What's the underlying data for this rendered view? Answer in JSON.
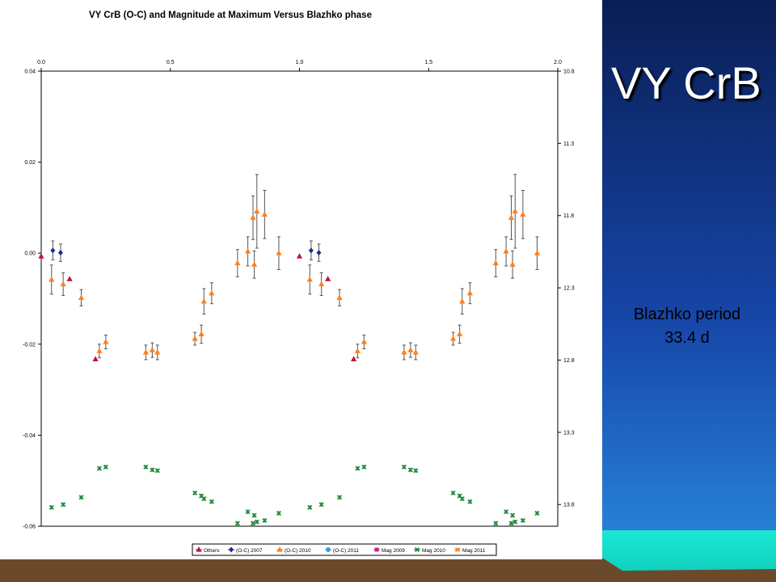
{
  "slide": {
    "title": "VY CrB",
    "caption_line1": "Blazhko period",
    "caption_line2": "33.4 d",
    "colors": {
      "blue_top": "#0a1e55",
      "blue_mid": "#1646a8",
      "blue_bottom": "#2b8ee0",
      "cyan_band": "#19e8d4",
      "brown_band": "#6b4a2c"
    }
  },
  "chart_data": {
    "type": "scatter",
    "title": "VY CrB (O-C) and Magnitude at Maximum Versus Blazhko phase",
    "x_ticks": [
      "0.0",
      "0.5",
      "1.0",
      "1.5",
      "2.0"
    ],
    "x_tick_values": [
      0,
      0.5,
      1.0,
      1.5,
      2.0
    ],
    "xlim": [
      0,
      2.0
    ],
    "y_left_ticks": [
      "0.04",
      "0.02",
      "0.00",
      "-0.02",
      "-0.04",
      "-0.06"
    ],
    "y_left_tick_values": [
      0.04,
      0.02,
      0.0,
      -0.02,
      -0.04,
      -0.06
    ],
    "ylim_left": [
      -0.06,
      0.04
    ],
    "y_right_ticks": [
      "10.8",
      "11.3",
      "11.8",
      "12.3",
      "12.8",
      "13.3",
      "13.8"
    ],
    "y_right_tick_values": [
      10.8,
      11.3,
      11.8,
      12.3,
      12.8,
      13.3,
      13.8
    ],
    "ylim_right": [
      10.8,
      13.95
    ],
    "right_axis_reversed": true,
    "grid": false,
    "legend_position": "bottom",
    "legend": [
      {
        "label": "Others",
        "color": "#c0143c",
        "marker": "triangle"
      },
      {
        "label": "(O-C) 2007",
        "color": "#1f2a8a",
        "marker": "diamond"
      },
      {
        "label": "(O-C) 2010",
        "color": "#ff7f1e",
        "marker": "triangle"
      },
      {
        "label": "(O-C) 2011",
        "color": "#3aa0d8",
        "marker": "circle"
      },
      {
        "label": "Mag 2009",
        "color": "#d02090",
        "marker": "square"
      },
      {
        "label": "Mag 2010",
        "color": "#1e8c3c",
        "marker": "x"
      },
      {
        "label": "Mag 2011",
        "color": "#ff7f1e",
        "marker": "x"
      }
    ],
    "series": [
      {
        "name": "Others",
        "axis": "left",
        "color": "#c0143c",
        "marker": "triangle",
        "points": [
          {
            "x": 0.0,
            "y": -0.0007
          },
          {
            "x": 0.11,
            "y": -0.0057
          },
          {
            "x": 0.21,
            "y": -0.0233
          },
          {
            "x": 1.0,
            "y": -0.0007
          },
          {
            "x": 1.11,
            "y": -0.0057
          },
          {
            "x": 1.21,
            "y": -0.0233
          }
        ]
      },
      {
        "name": "(O-C) 2007",
        "axis": "left",
        "color": "#1f2a8a",
        "marker": "diamond",
        "points": [
          {
            "x": 0.045,
            "y": 0.0006,
            "err": 0.0021
          },
          {
            "x": 0.075,
            "y": 0.0001,
            "err": 0.0019
          },
          {
            "x": 1.045,
            "y": 0.0006,
            "err": 0.0021
          },
          {
            "x": 1.075,
            "y": 0.0001,
            "err": 0.0019
          }
        ]
      },
      {
        "name": "(O-C) 2010",
        "axis": "left",
        "color": "#ff7f1e",
        "marker": "triangle",
        "points": [
          {
            "x": 0.04,
            "y": -0.0058,
            "err": 0.0032
          },
          {
            "x": 0.085,
            "y": -0.0068,
            "err": 0.0025
          },
          {
            "x": 0.155,
            "y": -0.0098,
            "err": 0.0018
          },
          {
            "x": 0.225,
            "y": -0.0215,
            "err": 0.0015
          },
          {
            "x": 0.25,
            "y": -0.0195,
            "err": 0.0015
          },
          {
            "x": 0.405,
            "y": -0.0218,
            "err": 0.0016
          },
          {
            "x": 0.43,
            "y": -0.0213,
            "err": 0.0016
          },
          {
            "x": 0.45,
            "y": -0.0218,
            "err": 0.0016
          },
          {
            "x": 0.595,
            "y": -0.0188,
            "err": 0.0014
          },
          {
            "x": 0.62,
            "y": -0.0178,
            "err": 0.002
          },
          {
            "x": 0.63,
            "y": -0.0106,
            "err": 0.0028
          },
          {
            "x": 0.66,
            "y": -0.0088,
            "err": 0.0023
          },
          {
            "x": 0.76,
            "y": -0.0022,
            "err": 0.003
          },
          {
            "x": 0.8,
            "y": 0.0004,
            "err": 0.0032
          },
          {
            "x": 0.82,
            "y": 0.0078,
            "err": 0.0048
          },
          {
            "x": 0.825,
            "y": -0.0025,
            "err": 0.003
          },
          {
            "x": 0.835,
            "y": 0.0092,
            "err": 0.0081
          },
          {
            "x": 0.865,
            "y": 0.0085,
            "err": 0.0053
          },
          {
            "x": 0.92,
            "y": 0.0,
            "err": 0.0036
          },
          {
            "x": 1.04,
            "y": -0.0058,
            "err": 0.0032
          },
          {
            "x": 1.085,
            "y": -0.0068,
            "err": 0.0025
          },
          {
            "x": 1.155,
            "y": -0.0098,
            "err": 0.0018
          },
          {
            "x": 1.225,
            "y": -0.0215,
            "err": 0.0015
          },
          {
            "x": 1.25,
            "y": -0.0195,
            "err": 0.0015
          },
          {
            "x": 1.405,
            "y": -0.0218,
            "err": 0.0016
          },
          {
            "x": 1.43,
            "y": -0.0213,
            "err": 0.0016
          },
          {
            "x": 1.45,
            "y": -0.0218,
            "err": 0.0016
          },
          {
            "x": 1.595,
            "y": -0.0188,
            "err": 0.0014
          },
          {
            "x": 1.62,
            "y": -0.0178,
            "err": 0.002
          },
          {
            "x": 1.63,
            "y": -0.0106,
            "err": 0.0028
          },
          {
            "x": 1.66,
            "y": -0.0088,
            "err": 0.0023
          },
          {
            "x": 1.76,
            "y": -0.0022,
            "err": 0.003
          },
          {
            "x": 1.8,
            "y": 0.0004,
            "err": 0.0032
          },
          {
            "x": 1.82,
            "y": 0.0078,
            "err": 0.0048
          },
          {
            "x": 1.825,
            "y": -0.0025,
            "err": 0.003
          },
          {
            "x": 1.835,
            "y": 0.0092,
            "err": 0.0081
          },
          {
            "x": 1.865,
            "y": 0.0085,
            "err": 0.0053
          },
          {
            "x": 1.92,
            "y": 0.0,
            "err": 0.0036
          }
        ]
      },
      {
        "name": "Mag 2010",
        "axis": "right",
        "color": "#1e8c3c",
        "marker": "x",
        "points": [
          {
            "x": 0.04,
            "y": 13.82
          },
          {
            "x": 0.085,
            "y": 13.8
          },
          {
            "x": 0.155,
            "y": 13.75
          },
          {
            "x": 0.225,
            "y": 13.55
          },
          {
            "x": 0.25,
            "y": 13.54
          },
          {
            "x": 0.405,
            "y": 13.54
          },
          {
            "x": 0.43,
            "y": 13.56
          },
          {
            "x": 0.45,
            "y": 13.565
          },
          {
            "x": 0.595,
            "y": 13.72
          },
          {
            "x": 0.62,
            "y": 13.74
          },
          {
            "x": 0.63,
            "y": 13.76
          },
          {
            "x": 0.66,
            "y": 13.78
          },
          {
            "x": 0.76,
            "y": 13.93
          },
          {
            "x": 0.8,
            "y": 13.85
          },
          {
            "x": 0.82,
            "y": 13.93
          },
          {
            "x": 0.825,
            "y": 13.875
          },
          {
            "x": 0.835,
            "y": 13.92
          },
          {
            "x": 0.865,
            "y": 13.91
          },
          {
            "x": 0.92,
            "y": 13.86
          },
          {
            "x": 1.04,
            "y": 13.82
          },
          {
            "x": 1.085,
            "y": 13.8
          },
          {
            "x": 1.155,
            "y": 13.75
          },
          {
            "x": 1.225,
            "y": 13.55
          },
          {
            "x": 1.25,
            "y": 13.54
          },
          {
            "x": 1.405,
            "y": 13.54
          },
          {
            "x": 1.43,
            "y": 13.56
          },
          {
            "x": 1.45,
            "y": 13.565
          },
          {
            "x": 1.595,
            "y": 13.72
          },
          {
            "x": 1.62,
            "y": 13.74
          },
          {
            "x": 1.63,
            "y": 13.76
          },
          {
            "x": 1.66,
            "y": 13.78
          },
          {
            "x": 1.76,
            "y": 13.93
          },
          {
            "x": 1.8,
            "y": 13.85
          },
          {
            "x": 1.82,
            "y": 13.93
          },
          {
            "x": 1.825,
            "y": 13.875
          },
          {
            "x": 1.835,
            "y": 13.92
          },
          {
            "x": 1.865,
            "y": 13.91
          },
          {
            "x": 1.92,
            "y": 13.86
          }
        ]
      }
    ]
  }
}
